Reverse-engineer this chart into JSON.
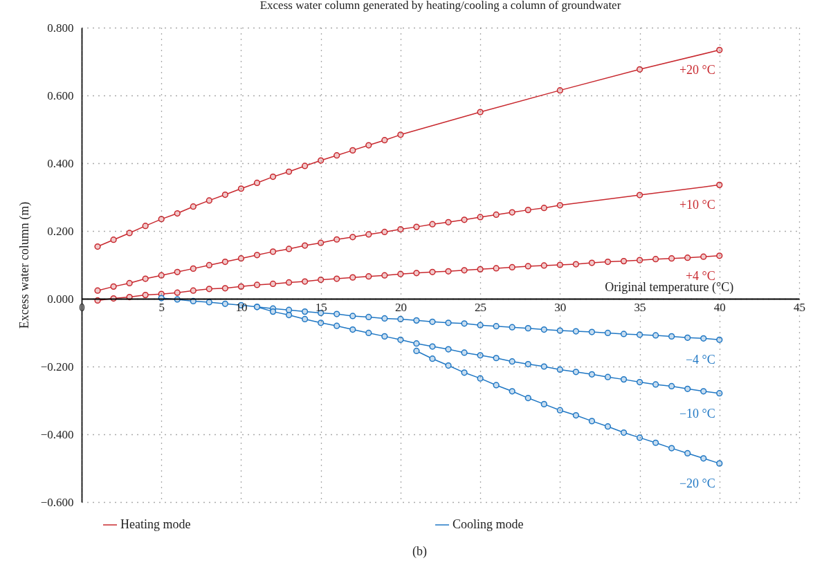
{
  "chart_data": {
    "type": "line",
    "title": "Excess water column generated by heating/cooling a column of groundwater",
    "xlabel": "Original temperature (°C)",
    "ylabel": "Excess water column (m)",
    "xlim": [
      0,
      45
    ],
    "xticks": [
      0,
      5,
      10,
      15,
      20,
      25,
      30,
      35,
      40,
      45
    ],
    "ylim": [
      -0.6,
      0.8
    ],
    "yticks": [
      {
        "value": -0.6,
        "label": "−0.600"
      },
      {
        "value": -0.4,
        "label": "−0.400"
      },
      {
        "value": -0.2,
        "label": "−0.200"
      },
      {
        "value": 0,
        "label": "0.000"
      },
      {
        "value": 0.2,
        "label": "0.200"
      },
      {
        "value": 0.4,
        "label": "0.400"
      },
      {
        "value": 0.6,
        "label": "0.600"
      },
      {
        "value": 0.8,
        "label": "0.800"
      }
    ],
    "grid": true,
    "legend": "bottom",
    "marker": "circle",
    "line_style": "solid",
    "series": [
      {
        "name": "Heating mode",
        "color": "#c8282e",
        "x": [
          1,
          2,
          3,
          4,
          5,
          6,
          7,
          8,
          9,
          10,
          11,
          12,
          13,
          14,
          15,
          16,
          17,
          18,
          19,
          20,
          25,
          30,
          35,
          40,
          null,
          1,
          2,
          3,
          4,
          5,
          6,
          7,
          8,
          9,
          10,
          11,
          12,
          13,
          14,
          15,
          16,
          17,
          18,
          19,
          20,
          21,
          22,
          23,
          24,
          25,
          26,
          27,
          28,
          29,
          30,
          35,
          40,
          null,
          1,
          2,
          3,
          4,
          5,
          6,
          7,
          8,
          9,
          10,
          11,
          12,
          13,
          14,
          15,
          16,
          17,
          18,
          19,
          20,
          21,
          22,
          23,
          24,
          25,
          26,
          27,
          28,
          29,
          30,
          31,
          32,
          33,
          34,
          35,
          36,
          37,
          38,
          39,
          40
        ],
        "values": [
          0.154,
          0.174,
          0.194,
          0.215,
          0.235,
          0.252,
          0.272,
          0.29,
          0.307,
          0.325,
          0.342,
          0.36,
          0.375,
          0.392,
          0.408,
          0.423,
          0.438,
          0.453,
          0.468,
          0.484,
          0.551,
          0.615,
          0.677,
          0.734,
          null,
          0.024,
          0.036,
          0.046,
          0.059,
          0.069,
          0.079,
          0.089,
          0.099,
          0.109,
          0.119,
          0.129,
          0.139,
          0.147,
          0.157,
          0.165,
          0.175,
          0.182,
          0.19,
          0.197,
          0.205,
          0.212,
          0.22,
          0.226,
          0.233,
          0.241,
          0.248,
          0.255,
          0.262,
          0.268,
          0.276,
          0.306,
          0.336,
          null,
          -0.005,
          0.001,
          0.005,
          0.011,
          0.014,
          0.018,
          0.024,
          0.029,
          0.031,
          0.036,
          0.041,
          0.044,
          0.048,
          0.051,
          0.056,
          0.059,
          0.063,
          0.066,
          0.069,
          0.073,
          0.076,
          0.079,
          0.081,
          0.084,
          0.087,
          0.09,
          0.093,
          0.096,
          0.098,
          0.1,
          0.102,
          0.106,
          0.109,
          0.111,
          0.114,
          0.117,
          0.119,
          0.121,
          0.124,
          0.127
        ]
      },
      {
        "name": "Cooling mode",
        "color": "#1f77c4",
        "x": [
          5,
          6,
          7,
          8,
          9,
          10,
          11,
          12,
          13,
          14,
          15,
          16,
          17,
          18,
          19,
          20,
          21,
          22,
          23,
          24,
          25,
          26,
          27,
          28,
          29,
          30,
          31,
          32,
          33,
          34,
          35,
          36,
          37,
          38,
          39,
          40,
          null,
          11,
          12,
          13,
          14,
          15,
          16,
          17,
          18,
          19,
          20,
          21,
          22,
          23,
          24,
          25,
          26,
          27,
          28,
          29,
          30,
          31,
          32,
          33,
          34,
          35,
          36,
          37,
          38,
          39,
          40,
          null,
          21,
          22,
          23,
          24,
          25,
          26,
          27,
          28,
          29,
          30,
          31,
          32,
          33,
          34,
          35,
          36,
          37,
          38,
          39,
          40
        ],
        "values": [
          0.002,
          -0.002,
          -0.007,
          -0.01,
          -0.015,
          -0.019,
          -0.024,
          -0.029,
          -0.033,
          -0.038,
          -0.042,
          -0.045,
          -0.051,
          -0.054,
          -0.058,
          -0.06,
          -0.064,
          -0.068,
          -0.071,
          -0.073,
          -0.078,
          -0.081,
          -0.084,
          -0.087,
          -0.091,
          -0.094,
          -0.096,
          -0.098,
          -0.101,
          -0.104,
          -0.106,
          -0.108,
          -0.111,
          -0.115,
          -0.117,
          -0.121,
          null,
          -0.024,
          -0.038,
          -0.048,
          -0.06,
          -0.071,
          -0.08,
          -0.091,
          -0.101,
          -0.111,
          -0.121,
          -0.132,
          -0.141,
          -0.149,
          -0.159,
          -0.167,
          -0.175,
          -0.185,
          -0.193,
          -0.2,
          -0.209,
          -0.216,
          -0.223,
          -0.231,
          -0.238,
          -0.246,
          -0.253,
          -0.258,
          -0.266,
          -0.273,
          -0.279,
          null,
          -0.154,
          -0.177,
          -0.197,
          -0.218,
          -0.235,
          -0.255,
          -0.273,
          -0.293,
          -0.311,
          -0.329,
          -0.344,
          -0.361,
          -0.377,
          -0.395,
          -0.41,
          -0.425,
          -0.441,
          -0.456,
          -0.471,
          -0.486
        ]
      }
    ],
    "annotations": [
      "+20 °C",
      "+10 °C",
      "+4 °C",
      "−4 °C",
      "−10 °C",
      "−20 °C",
      "(b)"
    ]
  }
}
